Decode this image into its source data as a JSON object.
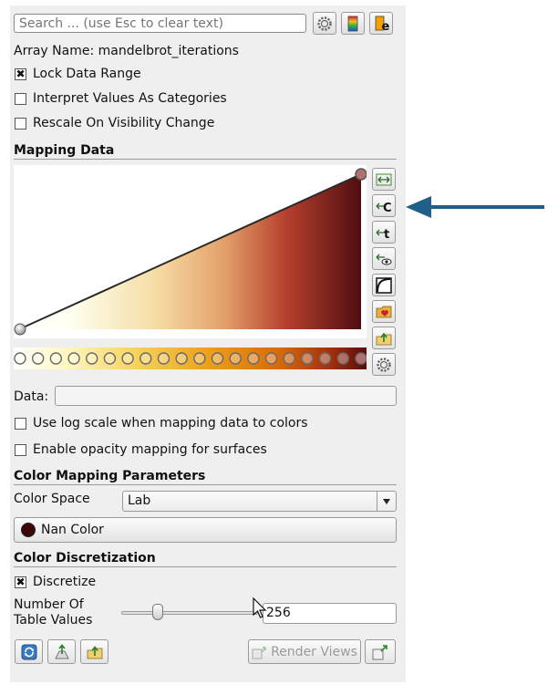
{
  "search": {
    "placeholder": "Search ... (use Esc to clear text)"
  },
  "toolbar_icons": [
    "gear-icon",
    "color-legend-icon",
    "edit-color-legend-icon"
  ],
  "array_name_label": "Array Name: mandelbrot_iterations",
  "options": {
    "lock_data_range": {
      "label": "Lock Data Range",
      "checked": true
    },
    "interpret_categories": {
      "label": "Interpret Values As Categories",
      "checked": false
    },
    "rescale_visibility": {
      "label": "Rescale On Visibility Change",
      "checked": false
    }
  },
  "mapping_data": {
    "section_title": "Mapping Data",
    "data_label": "Data:",
    "data_value": "",
    "log_scale_label": "Use log scale when mapping data to colors",
    "opacity_mapping_label": "Enable opacity mapping for surfaces",
    "opacity_nodes": 2,
    "color_nodes": 20,
    "colors": {
      "light": "#ffffe6",
      "mid1": "#f8d98f",
      "mid2": "#d86422",
      "dark": "#4f0d10",
      "bar_orange": "#e88a10"
    }
  },
  "color_mapping": {
    "section_title": "Color Mapping Parameters",
    "color_space_label": "Color Space",
    "color_space_value": "Lab",
    "nan_color_label": "Nan Color",
    "nan_color": "#3d0707"
  },
  "discretization": {
    "section_title": "Color Discretization",
    "discretize_label": "Discretize",
    "discretize_checked": true,
    "table_values_label_line1": "Number Of",
    "table_values_label_line2": "Table Values",
    "table_values": "256"
  },
  "bottom": {
    "render_views_label": "Render Views"
  },
  "accent_arrow_color": "#1f5f88"
}
